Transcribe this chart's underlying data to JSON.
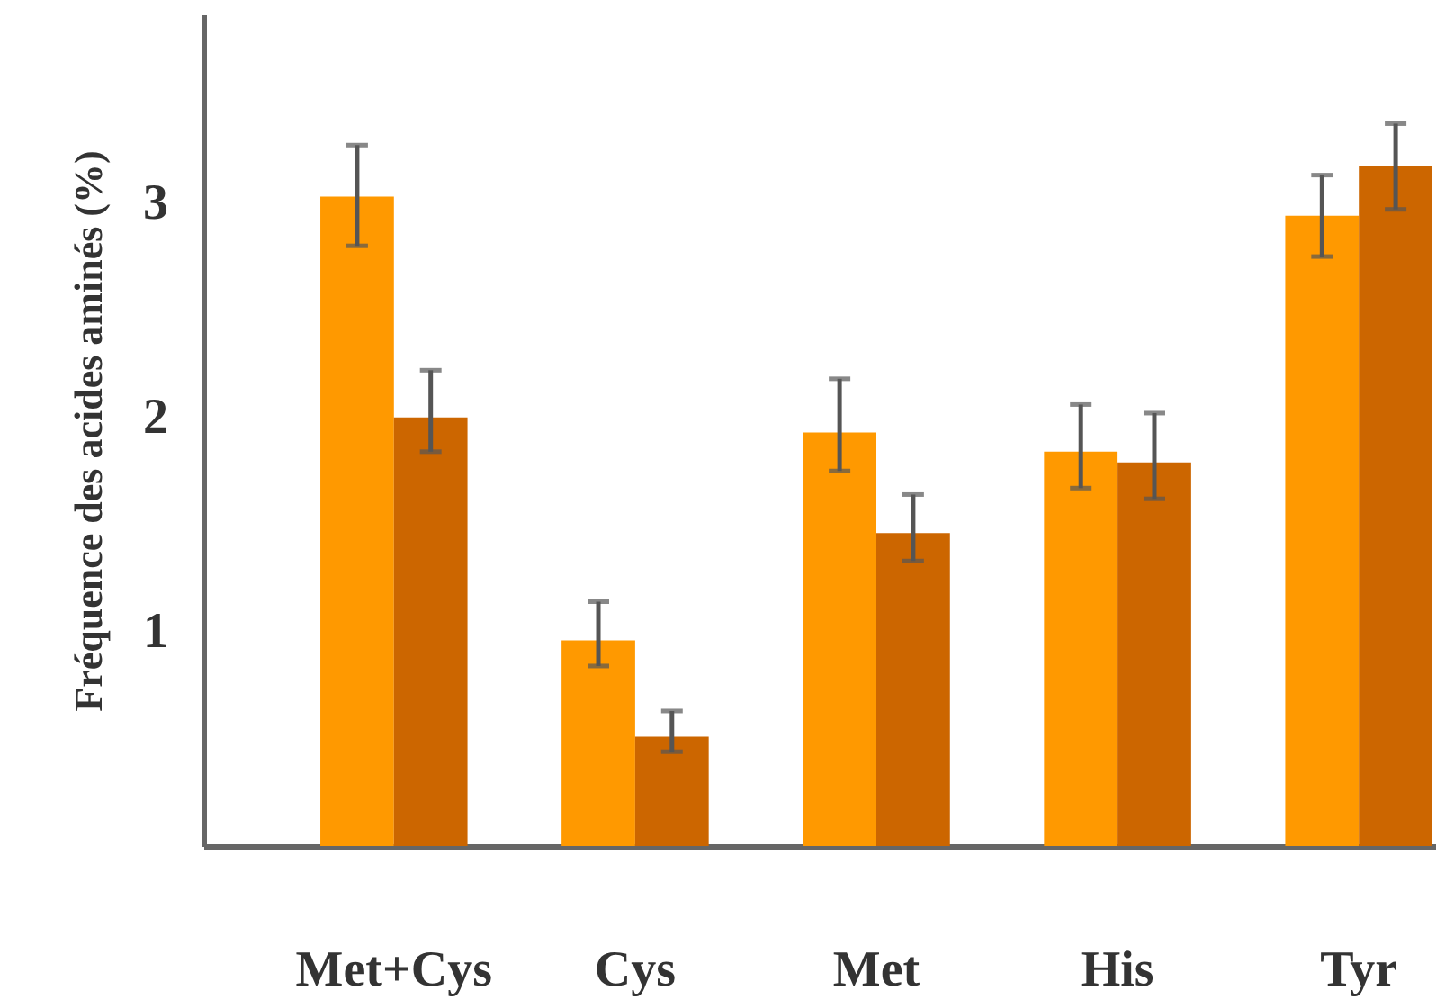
{
  "chart_data": {
    "type": "bar",
    "ylabel": "Fréquence des acides aminés (%)",
    "categories": [
      "Met+Cys",
      "Cys",
      "Met",
      "His",
      "Tyr"
    ],
    "series": [
      {
        "color": "#ff9900",
        "values": [
          3.03,
          0.96,
          1.93,
          1.84,
          2.94
        ],
        "errors": [
          [
            2.8,
            3.27
          ],
          [
            0.84,
            1.14
          ],
          [
            1.75,
            2.18
          ],
          [
            1.67,
            2.06
          ],
          [
            2.75,
            3.13
          ]
        ]
      },
      {
        "color": "#cc6600",
        "values": [
          2.0,
          0.51,
          1.46,
          1.79,
          3.17
        ],
        "errors": [
          [
            1.84,
            2.22
          ],
          [
            0.44,
            0.63
          ],
          [
            1.33,
            1.64
          ],
          [
            1.62,
            2.02
          ],
          [
            2.97,
            3.37
          ]
        ]
      }
    ],
    "ylim": [
      0,
      3.88
    ],
    "yticks": [
      1,
      2,
      3
    ],
    "grid": false
  }
}
